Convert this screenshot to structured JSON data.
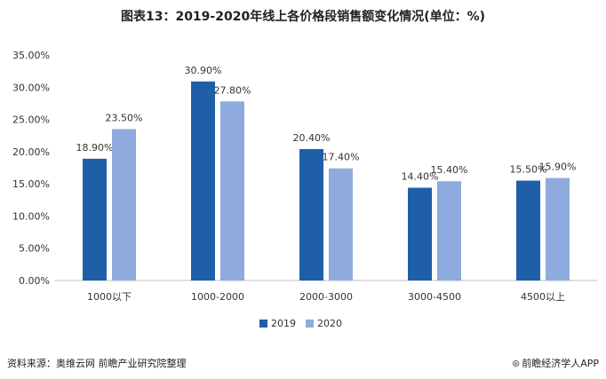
{
  "chart_data": {
    "type": "bar",
    "title": "图表13：2019-2020年线上各价格段销售额变化情况(单位：%)",
    "categories": [
      "1000以下",
      "1000-2000",
      "2000-3000",
      "3000-4500",
      "4500以上"
    ],
    "series": [
      {
        "name": "2019",
        "color": "#1f5fa8",
        "values": [
          18.9,
          30.9,
          20.4,
          14.4,
          15.5
        ],
        "labels": [
          "18.90%",
          "30.90%",
          "20.40%",
          "14.40%",
          "15.50%"
        ]
      },
      {
        "name": "2020",
        "color": "#8faadc",
        "values": [
          23.5,
          27.8,
          17.4,
          15.4,
          15.9
        ],
        "labels": [
          "23.50%",
          "27.80%",
          "17.40%",
          "15.40%",
          "15.90%"
        ]
      }
    ],
    "yticks": [
      "0.00%",
      "5.00%",
      "10.00%",
      "15.00%",
      "20.00%",
      "25.00%",
      "30.00%",
      "35.00%"
    ],
    "ylim": [
      0,
      35
    ],
    "legend_position": "bottom",
    "grid": false
  },
  "footer": {
    "source": "资料来源：奥维云网 前瞻产业研究院整理",
    "brand": "前瞻经济学人APP",
    "brand_icon": "brand-logo-icon"
  }
}
